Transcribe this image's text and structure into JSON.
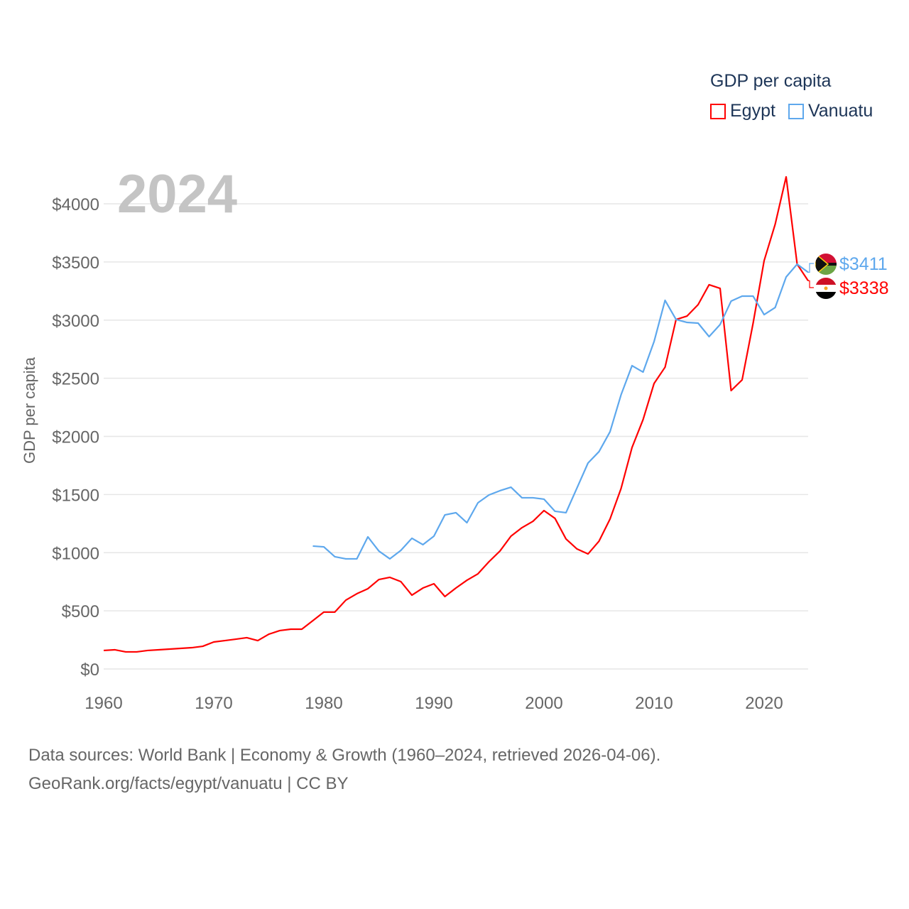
{
  "legend": {
    "title": "GDP per capita",
    "items": [
      {
        "label": "Egypt",
        "color": "#ff0000"
      },
      {
        "label": "Vanuatu",
        "color": "#5ea8ed"
      }
    ]
  },
  "year_label": "2024",
  "source": {
    "line1": "Data sources: World Bank | Economy & Growth (1960–2024, retrieved 2026-04-06).",
    "line2": "GeoRank.org/facts/egypt/vanuatu | CC BY"
  },
  "end_labels": {
    "egypt": "$3338",
    "vanuatu": "$3411"
  },
  "chart_data": {
    "type": "line",
    "title": "GDP per capita",
    "xlabel": "",
    "ylabel": "GDP per capita",
    "xlim": [
      1960,
      2024
    ],
    "ylim": [
      0,
      4250
    ],
    "x_ticks": [
      "1960",
      "1970",
      "1980",
      "1990",
      "2000",
      "2010",
      "2020"
    ],
    "y_ticks": [
      "$0",
      "$500",
      "$1000",
      "$1500",
      "$2000",
      "$2500",
      "$3000",
      "$3500",
      "$4000"
    ],
    "grid": true,
    "legend_position": "top-right",
    "series": [
      {
        "name": "Egypt",
        "color": "#ff0000",
        "start_year": 1960,
        "values": [
          159,
          165,
          147,
          147,
          159,
          165,
          171,
          177,
          183,
          195,
          232,
          244,
          256,
          269,
          244,
          299,
          330,
          342,
          342,
          415,
          489,
          489,
          592,
          647,
          690,
          769,
          788,
          751,
          635,
          696,
          733,
          623,
          696,
          763,
          818,
          922,
          1014,
          1142,
          1215,
          1270,
          1362,
          1295,
          1118,
          1032,
          989,
          1099,
          1289,
          1551,
          1905,
          2144,
          2455,
          2595,
          3005,
          3035,
          3133,
          3304,
          3273,
          2394,
          2486,
          2974,
          3511,
          3823,
          4232,
          3481,
          3338
        ]
      },
      {
        "name": "Vanuatu",
        "color": "#5ea8ed",
        "start_year": 1979,
        "values": [
          1057,
          1050,
          965,
          947,
          947,
          1136,
          1014,
          947,
          1020,
          1124,
          1069,
          1142,
          1325,
          1344,
          1258,
          1429,
          1496,
          1533,
          1563,
          1472,
          1472,
          1460,
          1356,
          1344,
          1557,
          1771,
          1869,
          2040,
          2357,
          2608,
          2553,
          2815,
          3170,
          3005,
          2980,
          2974,
          2858,
          2962,
          3163,
          3206,
          3206,
          3047,
          3108,
          3371,
          3481,
          3411
        ]
      }
    ]
  }
}
